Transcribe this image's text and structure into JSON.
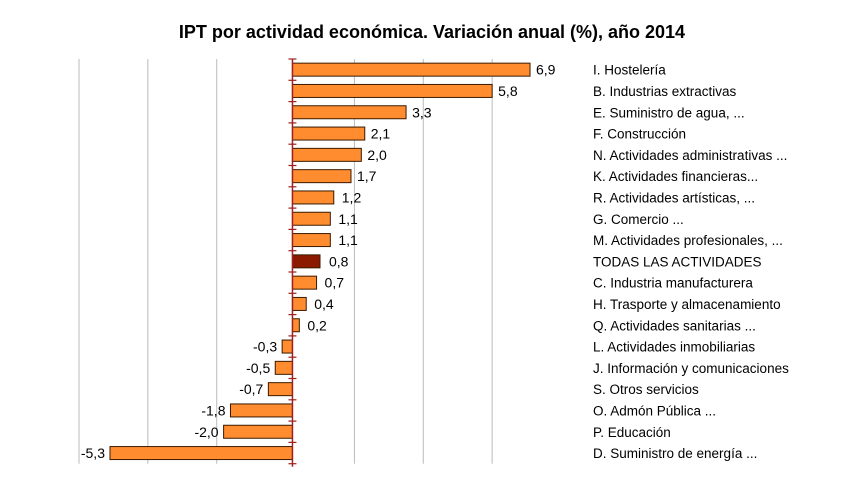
{
  "chart_data": {
    "type": "bar",
    "orientation": "horizontal",
    "title": "IPT por actividad económica. Variación anual (%), año 2014",
    "categories": [
      "I. Hostelería",
      "B. Industrias extractivas",
      "E. Suministro de agua, ...",
      "F. Construcción",
      "N. Actividades administrativas ...",
      "K. Actividades financieras...",
      "R. Actividades artísticas, ...",
      "G. Comercio ...",
      "M. Actividades profesionales, ...",
      "TODAS LAS ACTIVIDADES",
      "C. Industria manufacturera",
      "H. Trasporte y almacenamiento",
      "Q. Actividades sanitarias ...",
      "L. Actividades inmobiliarias",
      "J. Información y comunicaciones",
      "S. Otros servicios",
      "O. Admón Pública ...",
      "P. Educación",
      "D. Suministro de energía ..."
    ],
    "values": [
      6.9,
      5.8,
      3.3,
      2.1,
      2.0,
      1.7,
      1.2,
      1.1,
      1.1,
      0.8,
      0.7,
      0.4,
      0.2,
      -0.3,
      -0.5,
      -0.7,
      -1.8,
      -2.0,
      -5.3
    ],
    "data_labels": [
      "6,9",
      "5,8",
      "3,3",
      "2,1",
      "2,0",
      "1,7",
      "1,2",
      "1,1",
      "1,1",
      "0,8",
      "0,7",
      "0,4",
      "0,2",
      "-0,3",
      "-0,5",
      "-0,7",
      "-1,8",
      "-2,0",
      "-5,3"
    ],
    "highlight_category": "TODAS LAS ACTIVIDADES",
    "xlim": [
      -6.2,
      7.8
    ],
    "grid": true,
    "colors": {
      "bar": "#FF8C2E",
      "highlight": "#8B1A00",
      "axis": "#A02020",
      "grid": "#BBBBBB"
    }
  }
}
